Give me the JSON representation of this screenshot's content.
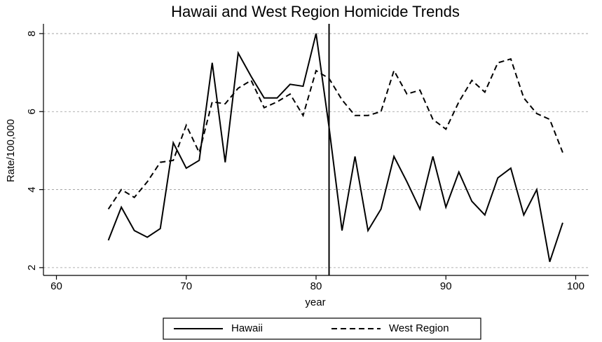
{
  "chart_data": {
    "type": "line",
    "title": "Hawaii and West Region Homicide Trends",
    "xlabel": "year",
    "ylabel": "Rate/100,000",
    "x": [
      64,
      65,
      66,
      67,
      68,
      69,
      70,
      71,
      72,
      73,
      74,
      75,
      76,
      77,
      78,
      79,
      80,
      81,
      82,
      83,
      84,
      85,
      86,
      87,
      88,
      89,
      90,
      91,
      92,
      93,
      94,
      95,
      96,
      97,
      98,
      99
    ],
    "series": [
      {
        "name": "Hawaii",
        "color": "#000000",
        "dash": "solid",
        "values": [
          2.7,
          3.55,
          2.95,
          2.78,
          3.0,
          5.2,
          4.55,
          4.75,
          7.25,
          4.7,
          7.5,
          6.9,
          6.35,
          6.35,
          6.7,
          6.65,
          8.0,
          5.6,
          2.95,
          4.85,
          2.95,
          3.5,
          4.85,
          4.2,
          3.5,
          4.85,
          3.55,
          4.45,
          3.7,
          3.35,
          4.3,
          4.55,
          3.35,
          4.0,
          2.15,
          3.15
        ]
      },
      {
        "name": "West Region",
        "color": "#000000",
        "dash": "dashed",
        "values": [
          3.5,
          4.0,
          3.8,
          4.2,
          4.7,
          4.75,
          5.65,
          4.95,
          6.25,
          6.2,
          6.6,
          6.8,
          6.1,
          6.25,
          6.45,
          5.9,
          7.05,
          6.85,
          6.3,
          5.9,
          5.9,
          6.0,
          7.05,
          6.45,
          6.55,
          5.8,
          5.55,
          6.25,
          6.8,
          6.5,
          7.25,
          7.35,
          6.35,
          5.95,
          5.8,
          4.95
        ]
      }
    ],
    "vline": 81,
    "xlim": [
      59,
      101
    ],
    "xticks": [
      60,
      70,
      80,
      90,
      100
    ],
    "ylim": [
      1.8,
      8.25
    ],
    "yticks": [
      2,
      4,
      6,
      8
    ],
    "grid": true,
    "legend": "bottom"
  }
}
